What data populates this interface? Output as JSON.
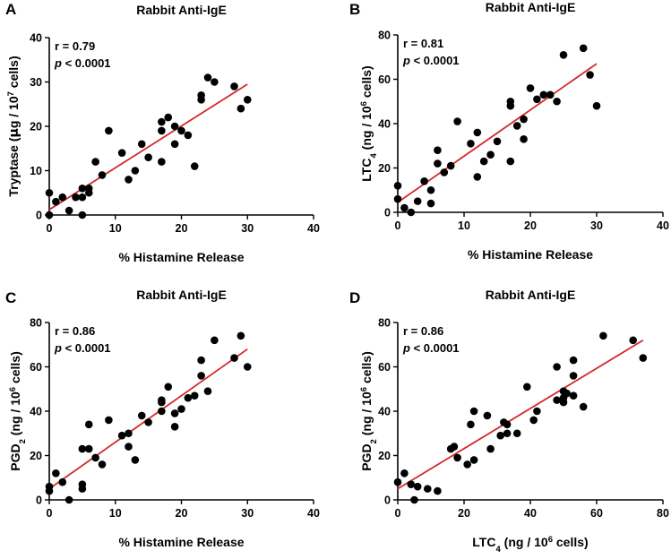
{
  "chart_data": [
    {
      "panel": "A",
      "type": "scatter",
      "title": "Rabbit Anti-IgE",
      "xlabel": "% Histamine Release",
      "ylabel": {
        "pre": "Tryptase (",
        "mu": "μ",
        "mid": "g / 10",
        "sup": "7",
        "post": " cells)"
      },
      "xlim": [
        0,
        40
      ],
      "ylim": [
        0,
        40
      ],
      "xticks": [
        0,
        10,
        20,
        30,
        40
      ],
      "yticks": [
        0,
        10,
        20,
        30,
        40
      ],
      "stat_r": "r = 0.79",
      "stat_p_letter": "p",
      "stat_p_rest": " < 0.0001",
      "fit": {
        "x": [
          0,
          30
        ],
        "y": [
          1.2,
          29.5
        ]
      },
      "points": [
        [
          0,
          5
        ],
        [
          0,
          0
        ],
        [
          1,
          3
        ],
        [
          2,
          4
        ],
        [
          3,
          1
        ],
        [
          4,
          4
        ],
        [
          5,
          6
        ],
        [
          5,
          4
        ],
        [
          5,
          0
        ],
        [
          6,
          5
        ],
        [
          6,
          6
        ],
        [
          7,
          12
        ],
        [
          8,
          9
        ],
        [
          9,
          19
        ],
        [
          11,
          14
        ],
        [
          12,
          8
        ],
        [
          13,
          10
        ],
        [
          14,
          16
        ],
        [
          15,
          13
        ],
        [
          17,
          12
        ],
        [
          17,
          19
        ],
        [
          17,
          21
        ],
        [
          18,
          22
        ],
        [
          19,
          16
        ],
        [
          19,
          20
        ],
        [
          20,
          19
        ],
        [
          21,
          18
        ],
        [
          22,
          11
        ],
        [
          23,
          26
        ],
        [
          23,
          27
        ],
        [
          24,
          31
        ],
        [
          25,
          30
        ],
        [
          28,
          29
        ],
        [
          29,
          24
        ],
        [
          30,
          26
        ]
      ]
    },
    {
      "panel": "B",
      "type": "scatter",
      "title": "Rabbit Anti-IgE",
      "xlabel": "% Histamine Release",
      "ylabel": {
        "pre": "LTC",
        "sub": "4",
        "mid": " (ng / 10",
        "sup": "6",
        "post": " cells)"
      },
      "xlim": [
        0,
        40
      ],
      "ylim": [
        0,
        80
      ],
      "xticks": [
        0,
        10,
        20,
        30,
        40
      ],
      "yticks": [
        0,
        20,
        40,
        60,
        80
      ],
      "stat_r": "r = 0.81",
      "stat_p_letter": "p",
      "stat_p_rest": " < 0.0001",
      "fit": {
        "x": [
          0,
          30
        ],
        "y": [
          4.5,
          67
        ]
      },
      "points": [
        [
          0,
          12
        ],
        [
          0,
          6
        ],
        [
          1,
          2
        ],
        [
          2,
          0
        ],
        [
          3,
          5
        ],
        [
          4,
          14
        ],
        [
          5,
          10
        ],
        [
          5,
          4
        ],
        [
          6,
          22
        ],
        [
          6,
          28
        ],
        [
          7,
          18
        ],
        [
          8,
          21
        ],
        [
          9,
          41
        ],
        [
          11,
          31
        ],
        [
          12,
          16
        ],
        [
          12,
          36
        ],
        [
          13,
          23
        ],
        [
          14,
          26
        ],
        [
          15,
          32
        ],
        [
          17,
          23
        ],
        [
          17,
          48
        ],
        [
          17,
          50
        ],
        [
          18,
          39
        ],
        [
          19,
          42
        ],
        [
          19,
          33
        ],
        [
          20,
          56
        ],
        [
          21,
          51
        ],
        [
          22,
          53
        ],
        [
          23,
          53
        ],
        [
          24,
          50
        ],
        [
          25,
          71
        ],
        [
          28,
          74
        ],
        [
          29,
          62
        ],
        [
          30,
          48
        ]
      ]
    },
    {
      "panel": "C",
      "type": "scatter",
      "title": "Rabbit Anti-IgE",
      "xlabel": "% Histamine Release",
      "ylabel": {
        "pre": "PGD",
        "sub": "2",
        "mid": " (ng / 10",
        "sup": "6",
        "post": " cells)"
      },
      "xlim": [
        0,
        40
      ],
      "ylim": [
        0,
        80
      ],
      "xticks": [
        0,
        10,
        20,
        30,
        40
      ],
      "yticks": [
        0,
        20,
        40,
        60,
        80
      ],
      "stat_r": "r = 0.86",
      "stat_p_letter": "p",
      "stat_p_rest": " < 0.0001",
      "fit": {
        "x": [
          0,
          30
        ],
        "y": [
          5,
          68
        ]
      },
      "points": [
        [
          0,
          6
        ],
        [
          0,
          4
        ],
        [
          1,
          12
        ],
        [
          2,
          8
        ],
        [
          3,
          0
        ],
        [
          5,
          23
        ],
        [
          5,
          7
        ],
        [
          5,
          5
        ],
        [
          6,
          23
        ],
        [
          6,
          34
        ],
        [
          7,
          19
        ],
        [
          8,
          16
        ],
        [
          9,
          36
        ],
        [
          11,
          29
        ],
        [
          12,
          30
        ],
        [
          12,
          24
        ],
        [
          13,
          18
        ],
        [
          14,
          38
        ],
        [
          15,
          35
        ],
        [
          17,
          40
        ],
        [
          17,
          44
        ],
        [
          17,
          45
        ],
        [
          18,
          51
        ],
        [
          19,
          39
        ],
        [
          19,
          33
        ],
        [
          20,
          41
        ],
        [
          21,
          46
        ],
        [
          22,
          47
        ],
        [
          23,
          56
        ],
        [
          23,
          63
        ],
        [
          24,
          49
        ],
        [
          25,
          72
        ],
        [
          28,
          64
        ],
        [
          29,
          74
        ],
        [
          30,
          60
        ]
      ]
    },
    {
      "panel": "D",
      "type": "scatter",
      "title": "Rabbit Anti-IgE",
      "xlabel": {
        "pre": "LTC",
        "sub": "4",
        "mid": " (ng / 10",
        "sup": "6",
        "post": " cells)"
      },
      "ylabel": {
        "pre": "PGD",
        "sub": "2",
        "mid": " (ng / 10",
        "sup": "6",
        "post": " cells)"
      },
      "xlim": [
        0,
        80
      ],
      "ylim": [
        0,
        80
      ],
      "xticks": [
        0,
        20,
        40,
        60,
        80
      ],
      "yticks": [
        0,
        20,
        40,
        60,
        80
      ],
      "stat_r": "r = 0.86",
      "stat_p_letter": "p",
      "stat_p_rest": " < 0.0001",
      "fit": {
        "x": [
          0,
          74
        ],
        "y": [
          5,
          72
        ]
      },
      "points": [
        [
          0,
          8
        ],
        [
          2,
          12
        ],
        [
          4,
          7
        ],
        [
          5,
          0
        ],
        [
          6,
          6
        ],
        [
          9,
          5
        ],
        [
          12,
          4
        ],
        [
          16,
          23
        ],
        [
          17,
          24
        ],
        [
          18,
          19
        ],
        [
          21,
          16
        ],
        [
          22,
          34
        ],
        [
          23,
          40
        ],
        [
          23,
          18
        ],
        [
          27,
          38
        ],
        [
          28,
          23
        ],
        [
          31,
          29
        ],
        [
          32,
          35
        ],
        [
          33,
          34
        ],
        [
          33,
          30
        ],
        [
          36,
          30
        ],
        [
          39,
          51
        ],
        [
          41,
          36
        ],
        [
          42,
          40
        ],
        [
          48,
          60
        ],
        [
          48,
          45
        ],
        [
          50,
          44
        ],
        [
          50,
          49
        ],
        [
          50,
          46
        ],
        [
          51,
          48
        ],
        [
          53,
          63
        ],
        [
          53,
          56
        ],
        [
          53,
          47
        ],
        [
          56,
          42
        ],
        [
          62,
          74
        ],
        [
          71,
          72
        ],
        [
          74,
          64
        ]
      ]
    }
  ]
}
